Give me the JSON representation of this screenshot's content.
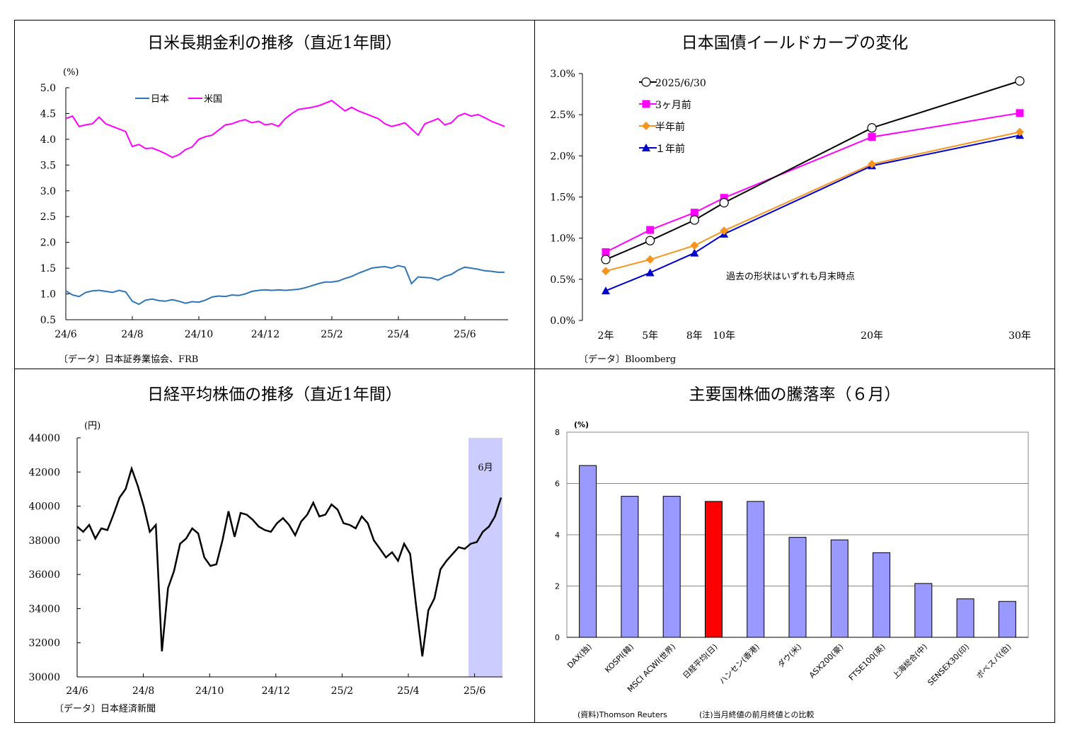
{
  "panels": {
    "rates": {
      "title": "日米長期金利の推移（直近1年間）",
      "unit": "(%)",
      "source": "〔データ〕日本証券業協会、FRB"
    },
    "yield_curve": {
      "title": "日本国債イールドカーブの変化",
      "note": "過去の形状はいずれも月末時点",
      "source": "〔データ〕Bloomberg"
    },
    "nikkei": {
      "title": "日経平均株価の推移（直近1年間）",
      "unit": "(円)",
      "highlight_label": "6月",
      "source": "〔データ〕日本経済新聞"
    },
    "world_stocks": {
      "title": "主要国株価の騰落率（６月）",
      "unit": "(%)",
      "source": "(資料)Thomson Reuters",
      "note": "(注)当月終値の前月終値との比較"
    }
  },
  "chart_data": [
    {
      "type": "line",
      "title": "日米長期金利の推移（直近1年間）",
      "ylabel": "(%)",
      "ylim": [
        0.5,
        5.0
      ],
      "yticks": [
        "5.0",
        "4.5",
        "4.0",
        "3.5",
        "3.0",
        "2.5",
        "2.0",
        "1.5",
        "1.0",
        "0.5"
      ],
      "xticks": [
        "24/6",
        "24/8",
        "24/10",
        "24/12",
        "25/2",
        "25/4",
        "25/6"
      ],
      "grid": false,
      "legend": "top-left",
      "series": [
        {
          "name": "日本",
          "color": "#2e75b6",
          "values": [
            1.06,
            0.98,
            0.95,
            1.03,
            1.06,
            1.07,
            1.05,
            1.03,
            1.07,
            1.04,
            0.86,
            0.8,
            0.88,
            0.9,
            0.87,
            0.86,
            0.89,
            0.86,
            0.82,
            0.85,
            0.84,
            0.88,
            0.94,
            0.96,
            0.95,
            0.98,
            0.97,
            1.0,
            1.05,
            1.07,
            1.08,
            1.07,
            1.08,
            1.07,
            1.08,
            1.09,
            1.12,
            1.16,
            1.2,
            1.23,
            1.23,
            1.25,
            1.3,
            1.34,
            1.4,
            1.45,
            1.5,
            1.52,
            1.53,
            1.5,
            1.55,
            1.52,
            1.2,
            1.33,
            1.32,
            1.31,
            1.27,
            1.34,
            1.38,
            1.46,
            1.52,
            1.5,
            1.48,
            1.45,
            1.44,
            1.42,
            1.42
          ]
        },
        {
          "name": "米国",
          "color": "#ff00ff",
          "values": [
            4.4,
            4.45,
            4.25,
            4.28,
            4.3,
            4.43,
            4.3,
            4.25,
            4.2,
            4.15,
            3.86,
            3.9,
            3.82,
            3.83,
            3.78,
            3.72,
            3.65,
            3.7,
            3.8,
            3.85,
            4.0,
            4.05,
            4.08,
            4.18,
            4.28,
            4.3,
            4.35,
            4.38,
            4.32,
            4.35,
            4.28,
            4.3,
            4.25,
            4.4,
            4.5,
            4.58,
            4.6,
            4.62,
            4.65,
            4.7,
            4.75,
            4.65,
            4.55,
            4.62,
            4.55,
            4.5,
            4.45,
            4.4,
            4.3,
            4.25,
            4.28,
            4.32,
            4.2,
            4.08,
            4.3,
            4.35,
            4.4,
            4.28,
            4.32,
            4.45,
            4.5,
            4.45,
            4.48,
            4.42,
            4.35,
            4.3,
            4.25
          ]
        }
      ]
    },
    {
      "type": "line",
      "title": "日本国債イールドカーブの変化",
      "ylim": [
        0.0,
        3.0
      ],
      "yticks": [
        "3.0%",
        "2.5%",
        "2.0%",
        "1.5%",
        "1.0%",
        "0.5%",
        "0.0%"
      ],
      "categories": [
        "2年",
        "5年",
        "8年",
        "10年",
        "20年",
        "30年"
      ],
      "x": [
        2,
        5,
        8,
        10,
        20,
        30
      ],
      "grid": false,
      "legend": "top-left",
      "series": [
        {
          "name": "2025/6/30",
          "color": "#000000",
          "marker": "circle",
          "values": [
            0.74,
            0.97,
            1.22,
            1.43,
            2.34,
            2.91
          ]
        },
        {
          "name": "3ヶ月前",
          "color": "#ff00ff",
          "marker": "square",
          "values": [
            0.83,
            1.1,
            1.31,
            1.49,
            2.23,
            2.52
          ]
        },
        {
          "name": "半年前",
          "color": "#f79420",
          "marker": "diamond",
          "values": [
            0.6,
            0.74,
            0.91,
            1.09,
            1.9,
            2.29
          ]
        },
        {
          "name": "１年前",
          "color": "#0000cc",
          "marker": "triangle",
          "values": [
            0.36,
            0.58,
            0.82,
            1.05,
            1.88,
            2.25
          ]
        }
      ]
    },
    {
      "type": "line",
      "title": "日経平均株価の推移（直近1年間）",
      "ylabel": "(円)",
      "ylim": [
        30000,
        44000
      ],
      "yticks": [
        "44000",
        "42000",
        "40000",
        "38000",
        "36000",
        "34000",
        "32000",
        "30000"
      ],
      "xticks": [
        "24/6",
        "24/8",
        "24/10",
        "24/12",
        "25/2",
        "25/4",
        "25/6"
      ],
      "grid": false,
      "highlight": {
        "label": "6月",
        "color": "#ccccff"
      },
      "series": [
        {
          "name": "",
          "color": "#000000",
          "values": [
            38800,
            38500,
            38900,
            38100,
            38700,
            38600,
            39500,
            40500,
            41000,
            42200,
            41200,
            40000,
            38500,
            38900,
            31500,
            35200,
            36200,
            37800,
            38100,
            38700,
            38400,
            37000,
            36500,
            36600,
            38000,
            39700,
            38200,
            39600,
            39500,
            39200,
            38800,
            38600,
            38500,
            39000,
            39300,
            38900,
            38300,
            39100,
            39500,
            40200,
            39400,
            39500,
            40100,
            39800,
            39000,
            38900,
            38700,
            39400,
            39000,
            38000,
            37500,
            37000,
            37300,
            36800,
            37800,
            37200,
            34100,
            31200,
            33900,
            34600,
            36300,
            36800,
            37200,
            37600,
            37500,
            37800,
            37900,
            38500,
            38800,
            39400,
            40500
          ]
        }
      ]
    },
    {
      "type": "bar",
      "title": "主要国株価の騰落率（６月）",
      "ylabel": "(%)",
      "ylim": [
        0,
        8
      ],
      "yticks": [
        "8",
        "6",
        "4",
        "2",
        "0"
      ],
      "grid": true,
      "categories": [
        "DAX(独)",
        "KOSPI(韓)",
        "MSCI ACWI(世界)",
        "日経平均(日)",
        "ハンセン(香港)",
        "ダウ(米)",
        "ASX200(豪)",
        "FTSE100(英)",
        "上海総合(中)",
        "SENSEX30(印)",
        "ボベスパ(伯)"
      ],
      "values": [
        6.7,
        5.5,
        5.5,
        5.3,
        5.3,
        3.9,
        3.8,
        3.3,
        2.1,
        1.5,
        1.4
      ],
      "colors": {
        "bar": "#9999ff",
        "highlight": "#ff0000",
        "highlight_category": "日経平均(日)"
      }
    }
  ]
}
